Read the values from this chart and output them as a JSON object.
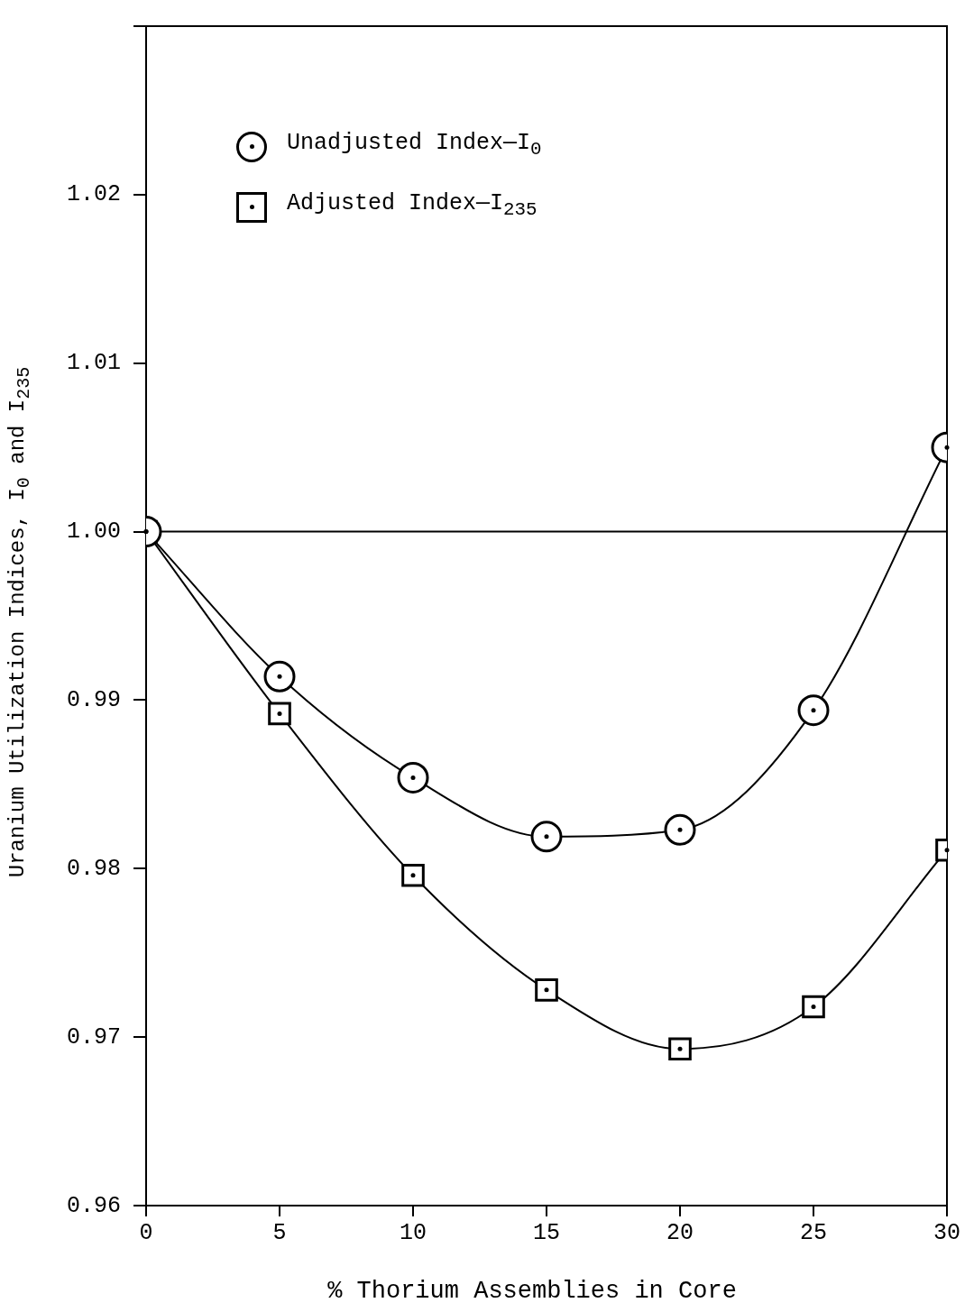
{
  "chart_data": {
    "type": "line",
    "xlabel": "% Thorium Assemblies in Core",
    "ylabel": "Uranium Utilization Indices, I$_{0}$ and I$_{235}$",
    "x": [
      0,
      5,
      10,
      15,
      20,
      25,
      30
    ],
    "series": [
      {
        "name": "Unadjusted Index—I$_{0}$",
        "color": "#000000",
        "marker": "circle",
        "values": [
          1.0,
          0.9914,
          0.9854,
          0.9819,
          0.9823,
          0.9894,
          1.005
        ]
      },
      {
        "name": "Adjusted Index—I$_{235}$",
        "color": "#000000",
        "marker": "square",
        "values": [
          1.0,
          0.9892,
          0.9796,
          0.9728,
          0.9693,
          0.9718,
          0.9811
        ]
      }
    ],
    "xlim": [
      0,
      30
    ],
    "xticks": [
      0,
      5,
      10,
      15,
      20,
      25,
      30
    ],
    "ylim": [
      0.96,
      1.03
    ],
    "yticks": [
      {
        "value": 0.96,
        "label": "0.96"
      },
      {
        "value": 0.97,
        "label": "0.97"
      },
      {
        "value": 0.98,
        "label": "0.98"
      },
      {
        "value": 0.99,
        "label": "0.99"
      },
      {
        "value": 1.0,
        "label": "1.00"
      },
      {
        "value": 1.01,
        "label": "1.01"
      },
      {
        "value": 1.02,
        "label": "1.02"
      },
      {
        "value": 1.03,
        "label": null
      }
    ],
    "ref_lines": [
      {
        "axis": "y",
        "value": 1.0,
        "color": "#000000"
      }
    ],
    "grid": false,
    "legend": "top left"
  }
}
